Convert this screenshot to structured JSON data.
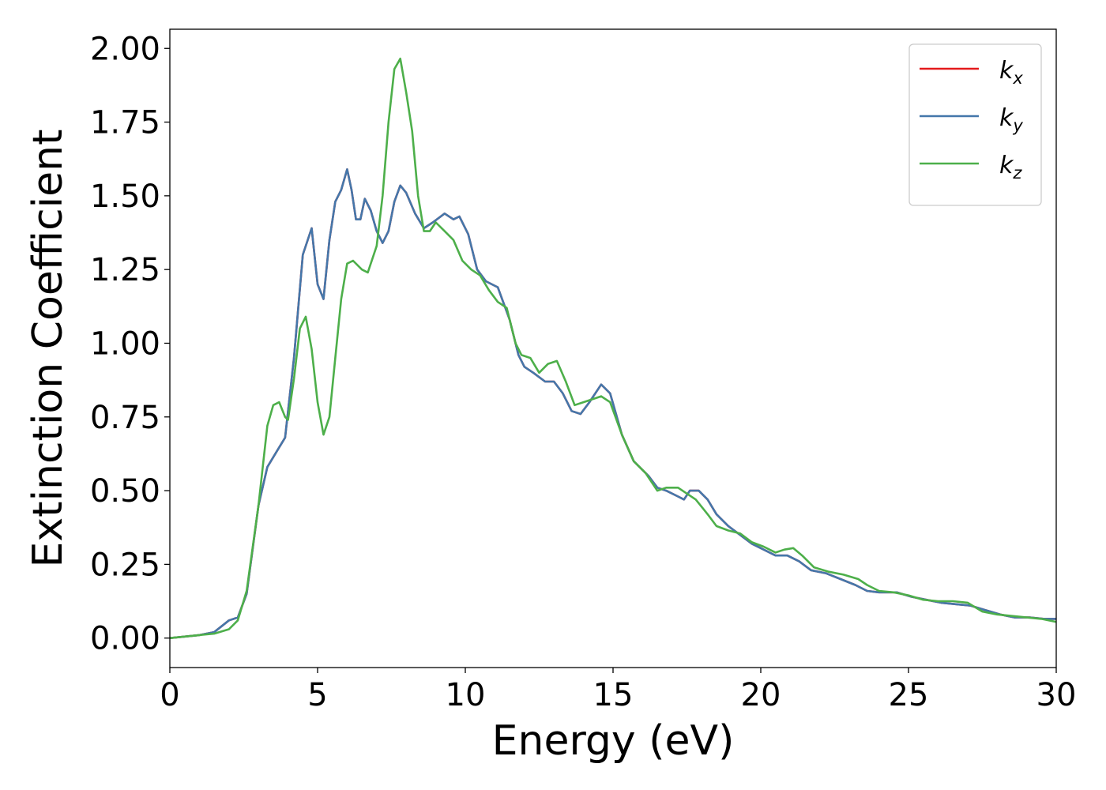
{
  "chart_data": {
    "type": "line",
    "title": "",
    "xlabel": "Energy (eV)",
    "ylabel": "Extinction Coefficient",
    "xlim": [
      0,
      30
    ],
    "ylim": [
      -0.1,
      2.065
    ],
    "xticks": [
      0,
      5,
      10,
      15,
      20,
      25,
      30
    ],
    "xtick_labels": [
      "0",
      "5",
      "10",
      "15",
      "20",
      "25",
      "30"
    ],
    "yticks": [
      0,
      0.25,
      0.5,
      0.75,
      1.0,
      1.25,
      1.5,
      1.75,
      2.0
    ],
    "ytick_labels": [
      "0.00",
      "0.25",
      "0.50",
      "0.75",
      "1.00",
      "1.25",
      "1.50",
      "1.75",
      "2.00"
    ],
    "grid": false,
    "legend_position": "upper right",
    "series": [
      {
        "name": "k_x",
        "base": "k",
        "sub": "x",
        "color": "#e41a1c",
        "points": [
          [
            0,
            0
          ],
          [
            1,
            0.01
          ],
          [
            1.5,
            0.02
          ],
          [
            2,
            0.06
          ],
          [
            2.3,
            0.07
          ],
          [
            2.6,
            0.15
          ],
          [
            3,
            0.45
          ],
          [
            3.3,
            0.58
          ],
          [
            3.6,
            0.63
          ],
          [
            3.9,
            0.68
          ],
          [
            4.2,
            0.95
          ],
          [
            4.5,
            1.3
          ],
          [
            4.8,
            1.39
          ],
          [
            5.0,
            1.2
          ],
          [
            5.2,
            1.15
          ],
          [
            5.4,
            1.35
          ],
          [
            5.6,
            1.48
          ],
          [
            5.8,
            1.52
          ],
          [
            6.0,
            1.59
          ],
          [
            6.15,
            1.52
          ],
          [
            6.3,
            1.42
          ],
          [
            6.45,
            1.42
          ],
          [
            6.6,
            1.49
          ],
          [
            6.8,
            1.45
          ],
          [
            7.0,
            1.38
          ],
          [
            7.2,
            1.34
          ],
          [
            7.4,
            1.38
          ],
          [
            7.6,
            1.48
          ],
          [
            7.8,
            1.535
          ],
          [
            8.0,
            1.51
          ],
          [
            8.3,
            1.44
          ],
          [
            8.6,
            1.39
          ],
          [
            8.9,
            1.41
          ],
          [
            9.3,
            1.44
          ],
          [
            9.6,
            1.42
          ],
          [
            9.8,
            1.43
          ],
          [
            10.1,
            1.37
          ],
          [
            10.4,
            1.25
          ],
          [
            10.7,
            1.21
          ],
          [
            11.1,
            1.19
          ],
          [
            11.5,
            1.08
          ],
          [
            11.8,
            0.96
          ],
          [
            12.0,
            0.92
          ],
          [
            12.3,
            0.9
          ],
          [
            12.7,
            0.87
          ],
          [
            13.0,
            0.87
          ],
          [
            13.3,
            0.83
          ],
          [
            13.6,
            0.77
          ],
          [
            13.9,
            0.76
          ],
          [
            14.2,
            0.8
          ],
          [
            14.6,
            0.86
          ],
          [
            14.9,
            0.83
          ],
          [
            15.3,
            0.69
          ],
          [
            15.7,
            0.6
          ],
          [
            16.2,
            0.55
          ],
          [
            16.5,
            0.51
          ],
          [
            16.8,
            0.5
          ],
          [
            17.2,
            0.48
          ],
          [
            17.4,
            0.47
          ],
          [
            17.6,
            0.5
          ],
          [
            17.9,
            0.5
          ],
          [
            18.2,
            0.47
          ],
          [
            18.5,
            0.42
          ],
          [
            18.9,
            0.38
          ],
          [
            19.3,
            0.35
          ],
          [
            19.7,
            0.32
          ],
          [
            20.1,
            0.3
          ],
          [
            20.5,
            0.28
          ],
          [
            20.9,
            0.28
          ],
          [
            21.3,
            0.26
          ],
          [
            21.7,
            0.23
          ],
          [
            22.2,
            0.22
          ],
          [
            22.7,
            0.2
          ],
          [
            23.2,
            0.18
          ],
          [
            23.6,
            0.16
          ],
          [
            24.0,
            0.155
          ],
          [
            24.6,
            0.155
          ],
          [
            25.1,
            0.14
          ],
          [
            25.6,
            0.13
          ],
          [
            26.1,
            0.12
          ],
          [
            26.6,
            0.115
          ],
          [
            27.1,
            0.11
          ],
          [
            27.6,
            0.095
          ],
          [
            28.1,
            0.08
          ],
          [
            28.6,
            0.07
          ],
          [
            29.1,
            0.07
          ],
          [
            29.6,
            0.065
          ],
          [
            30,
            0.065
          ]
        ]
      },
      {
        "name": "k_y",
        "base": "k",
        "sub": "y",
        "color": "#4477aa",
        "points": [
          [
            0,
            0
          ],
          [
            1,
            0.01
          ],
          [
            1.5,
            0.02
          ],
          [
            2,
            0.06
          ],
          [
            2.3,
            0.07
          ],
          [
            2.6,
            0.15
          ],
          [
            3,
            0.45
          ],
          [
            3.3,
            0.58
          ],
          [
            3.6,
            0.63
          ],
          [
            3.9,
            0.68
          ],
          [
            4.2,
            0.95
          ],
          [
            4.5,
            1.3
          ],
          [
            4.8,
            1.39
          ],
          [
            5.0,
            1.2
          ],
          [
            5.2,
            1.15
          ],
          [
            5.4,
            1.35
          ],
          [
            5.6,
            1.48
          ],
          [
            5.8,
            1.52
          ],
          [
            6.0,
            1.59
          ],
          [
            6.15,
            1.52
          ],
          [
            6.3,
            1.42
          ],
          [
            6.45,
            1.42
          ],
          [
            6.6,
            1.49
          ],
          [
            6.8,
            1.45
          ],
          [
            7.0,
            1.38
          ],
          [
            7.2,
            1.34
          ],
          [
            7.4,
            1.38
          ],
          [
            7.6,
            1.48
          ],
          [
            7.8,
            1.535
          ],
          [
            8.0,
            1.51
          ],
          [
            8.3,
            1.44
          ],
          [
            8.6,
            1.39
          ],
          [
            8.9,
            1.41
          ],
          [
            9.3,
            1.44
          ],
          [
            9.6,
            1.42
          ],
          [
            9.8,
            1.43
          ],
          [
            10.1,
            1.37
          ],
          [
            10.4,
            1.25
          ],
          [
            10.7,
            1.21
          ],
          [
            11.1,
            1.19
          ],
          [
            11.5,
            1.08
          ],
          [
            11.8,
            0.96
          ],
          [
            12.0,
            0.92
          ],
          [
            12.3,
            0.9
          ],
          [
            12.7,
            0.87
          ],
          [
            13.0,
            0.87
          ],
          [
            13.3,
            0.83
          ],
          [
            13.6,
            0.77
          ],
          [
            13.9,
            0.76
          ],
          [
            14.2,
            0.8
          ],
          [
            14.6,
            0.86
          ],
          [
            14.9,
            0.83
          ],
          [
            15.3,
            0.69
          ],
          [
            15.7,
            0.6
          ],
          [
            16.2,
            0.55
          ],
          [
            16.5,
            0.51
          ],
          [
            16.8,
            0.5
          ],
          [
            17.2,
            0.48
          ],
          [
            17.4,
            0.47
          ],
          [
            17.6,
            0.5
          ],
          [
            17.9,
            0.5
          ],
          [
            18.2,
            0.47
          ],
          [
            18.5,
            0.42
          ],
          [
            18.9,
            0.38
          ],
          [
            19.3,
            0.35
          ],
          [
            19.7,
            0.32
          ],
          [
            20.1,
            0.3
          ],
          [
            20.5,
            0.28
          ],
          [
            20.9,
            0.28
          ],
          [
            21.3,
            0.26
          ],
          [
            21.7,
            0.23
          ],
          [
            22.2,
            0.22
          ],
          [
            22.7,
            0.2
          ],
          [
            23.2,
            0.18
          ],
          [
            23.6,
            0.16
          ],
          [
            24.0,
            0.155
          ],
          [
            24.6,
            0.155
          ],
          [
            25.1,
            0.14
          ],
          [
            25.6,
            0.13
          ],
          [
            26.1,
            0.12
          ],
          [
            26.6,
            0.115
          ],
          [
            27.1,
            0.11
          ],
          [
            27.6,
            0.095
          ],
          [
            28.1,
            0.08
          ],
          [
            28.6,
            0.07
          ],
          [
            29.1,
            0.07
          ],
          [
            29.6,
            0.065
          ],
          [
            30,
            0.065
          ]
        ]
      },
      {
        "name": "k_z",
        "base": "k",
        "sub": "z",
        "color": "#4daf4a",
        "points": [
          [
            0,
            0
          ],
          [
            1,
            0.01
          ],
          [
            1.5,
            0.015
          ],
          [
            2,
            0.03
          ],
          [
            2.3,
            0.06
          ],
          [
            2.6,
            0.16
          ],
          [
            3,
            0.45
          ],
          [
            3.3,
            0.72
          ],
          [
            3.5,
            0.79
          ],
          [
            3.7,
            0.8
          ],
          [
            3.9,
            0.75
          ],
          [
            4.0,
            0.74
          ],
          [
            4.2,
            0.88
          ],
          [
            4.4,
            1.05
          ],
          [
            4.6,
            1.09
          ],
          [
            4.8,
            0.98
          ],
          [
            5.0,
            0.8
          ],
          [
            5.2,
            0.69
          ],
          [
            5.4,
            0.75
          ],
          [
            5.6,
            0.95
          ],
          [
            5.8,
            1.15
          ],
          [
            6.0,
            1.27
          ],
          [
            6.2,
            1.28
          ],
          [
            6.5,
            1.25
          ],
          [
            6.7,
            1.24
          ],
          [
            7.0,
            1.33
          ],
          [
            7.2,
            1.5
          ],
          [
            7.4,
            1.75
          ],
          [
            7.6,
            1.93
          ],
          [
            7.8,
            1.965
          ],
          [
            8.0,
            1.85
          ],
          [
            8.2,
            1.72
          ],
          [
            8.4,
            1.5
          ],
          [
            8.6,
            1.38
          ],
          [
            8.8,
            1.38
          ],
          [
            9.0,
            1.41
          ],
          [
            9.3,
            1.38
          ],
          [
            9.6,
            1.35
          ],
          [
            9.9,
            1.28
          ],
          [
            10.2,
            1.25
          ],
          [
            10.5,
            1.23
          ],
          [
            10.8,
            1.18
          ],
          [
            11.1,
            1.14
          ],
          [
            11.4,
            1.12
          ],
          [
            11.7,
            1.0
          ],
          [
            11.9,
            0.96
          ],
          [
            12.2,
            0.95
          ],
          [
            12.5,
            0.9
          ],
          [
            12.8,
            0.93
          ],
          [
            13.1,
            0.94
          ],
          [
            13.4,
            0.87
          ],
          [
            13.7,
            0.79
          ],
          [
            14.0,
            0.8
          ],
          [
            14.3,
            0.81
          ],
          [
            14.6,
            0.82
          ],
          [
            14.9,
            0.8
          ],
          [
            15.3,
            0.69
          ],
          [
            15.7,
            0.6
          ],
          [
            16.1,
            0.56
          ],
          [
            16.5,
            0.5
          ],
          [
            16.8,
            0.51
          ],
          [
            17.2,
            0.51
          ],
          [
            17.5,
            0.49
          ],
          [
            17.8,
            0.47
          ],
          [
            18.2,
            0.42
          ],
          [
            18.5,
            0.38
          ],
          [
            18.9,
            0.365
          ],
          [
            19.3,
            0.355
          ],
          [
            19.7,
            0.325
          ],
          [
            20.1,
            0.31
          ],
          [
            20.5,
            0.29
          ],
          [
            20.8,
            0.3
          ],
          [
            21.1,
            0.305
          ],
          [
            21.4,
            0.28
          ],
          [
            21.8,
            0.24
          ],
          [
            22.3,
            0.225
          ],
          [
            22.8,
            0.215
          ],
          [
            23.3,
            0.2
          ],
          [
            23.6,
            0.18
          ],
          [
            24.0,
            0.16
          ],
          [
            24.5,
            0.155
          ],
          [
            25.0,
            0.145
          ],
          [
            25.5,
            0.13
          ],
          [
            26.0,
            0.125
          ],
          [
            26.5,
            0.125
          ],
          [
            27.0,
            0.12
          ],
          [
            27.5,
            0.09
          ],
          [
            28.0,
            0.08
          ],
          [
            28.5,
            0.075
          ],
          [
            29.0,
            0.07
          ],
          [
            29.5,
            0.065
          ],
          [
            30,
            0.055
          ]
        ]
      }
    ]
  }
}
